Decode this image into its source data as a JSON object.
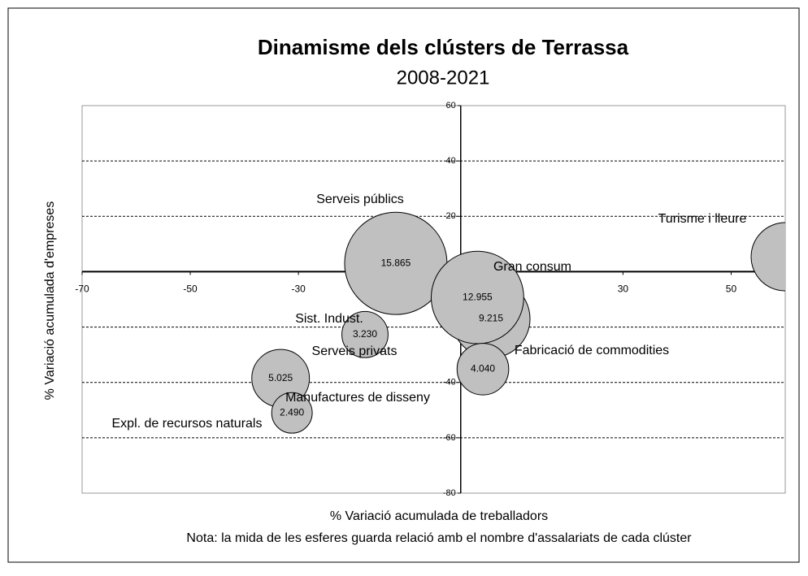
{
  "chart_data": {
    "type": "bubble",
    "title": "Dinamisme dels clústers de Terrassa",
    "subtitle": "2008-2021",
    "x_label": "% Variació acumulada de treballadors",
    "y_label": "% Variació acumulada d'empreses",
    "note": "Nota: la mida de les esferes guarda relació amb el nombre d'assalariats de cada clúster",
    "series": [
      {
        "name": "Clústers",
        "color": "#c0c0c0",
        "points": [
          "Serveis públics",
          "Turisme i lleure",
          "Gran consum",
          "Fabricació de commodities",
          "Sist. Indust.",
          "Serveis privats",
          "Manufactures de disseny",
          "Expl. de recursos naturals"
        ],
        "x": [
          -12,
          60,
          3.1,
          5.6,
          -17.7,
          -33.3,
          4.1,
          -31.2
        ],
        "values": [
          3,
          5.4,
          -9.3,
          -17,
          -22.7,
          -38.5,
          -35.2,
          -51
        ],
        "sizes": [
          15865,
          7050,
          12955,
          9215,
          3230,
          5025,
          4040,
          2490
        ],
        "value_labels": [
          "15.865",
          null,
          "12.955",
          "9.215",
          "3.230",
          "5.025",
          "4.040",
          "2.490"
        ]
      }
    ],
    "xlim": [
      -70,
      60
    ],
    "xticks": [
      -70,
      -50,
      -30,
      -10,
      10,
      30,
      50
    ],
    "ylim": [
      -80,
      60
    ],
    "yticks": [
      -80,
      -60,
      -40,
      -20,
      0,
      20,
      40,
      60
    ],
    "grid": true
  }
}
